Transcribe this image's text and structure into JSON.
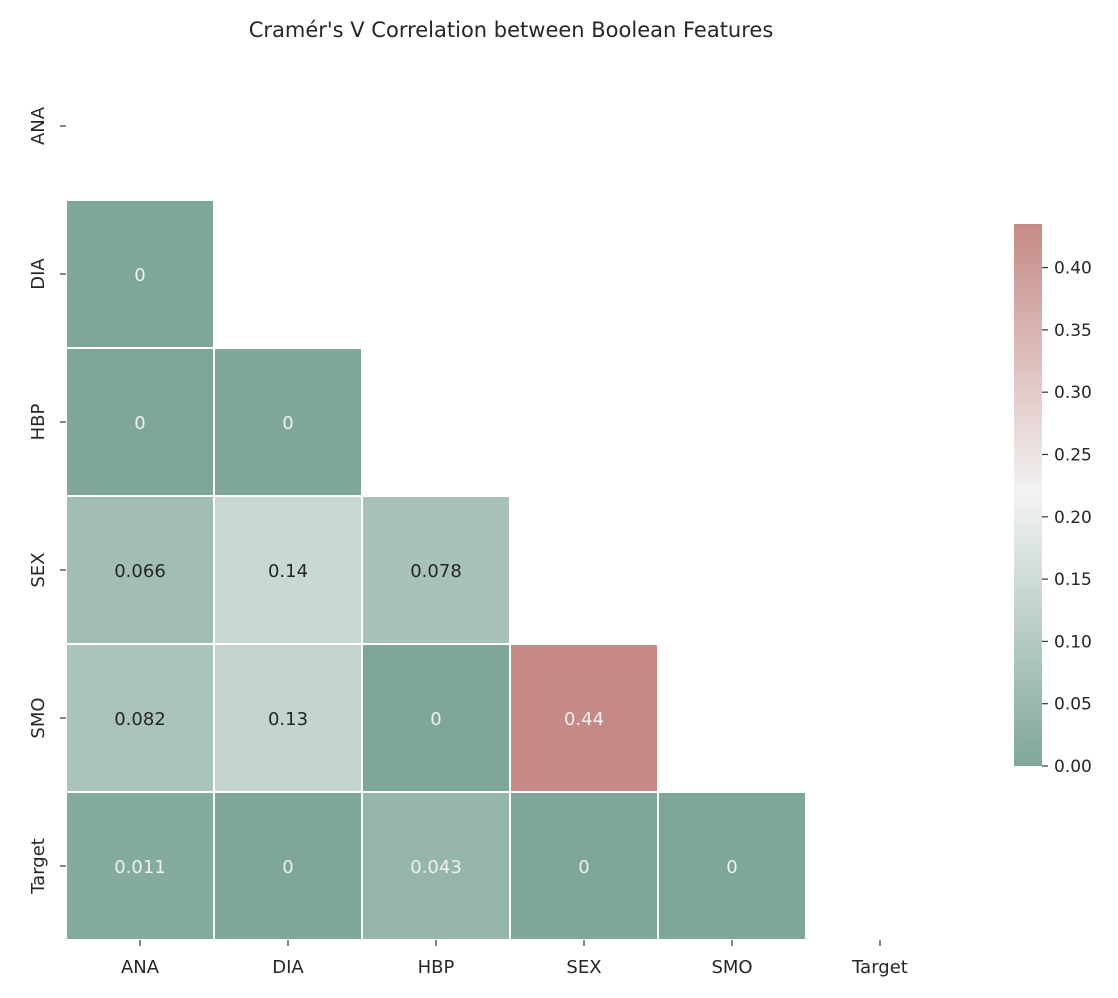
{
  "chart_data": {
    "type": "heatmap",
    "title": "Cramér's V Correlation between Boolean Features",
    "x_labels": [
      "ANA",
      "DIA",
      "HBP",
      "SEX",
      "SMO",
      "Target"
    ],
    "y_labels": [
      "ANA",
      "DIA",
      "HBP",
      "SEX",
      "SMO",
      "Target"
    ],
    "mask": "upper-triangle-including-diagonal",
    "cells": [
      {
        "row": "DIA",
        "col": "ANA",
        "value": 0,
        "label": "0"
      },
      {
        "row": "HBP",
        "col": "ANA",
        "value": 0,
        "label": "0"
      },
      {
        "row": "HBP",
        "col": "DIA",
        "value": 0,
        "label": "0"
      },
      {
        "row": "SEX",
        "col": "ANA",
        "value": 0.066,
        "label": "0.066"
      },
      {
        "row": "SEX",
        "col": "DIA",
        "value": 0.14,
        "label": "0.14"
      },
      {
        "row": "SEX",
        "col": "HBP",
        "value": 0.078,
        "label": "0.078"
      },
      {
        "row": "SMO",
        "col": "ANA",
        "value": 0.082,
        "label": "0.082"
      },
      {
        "row": "SMO",
        "col": "DIA",
        "value": 0.13,
        "label": "0.13"
      },
      {
        "row": "SMO",
        "col": "HBP",
        "value": 0,
        "label": "0"
      },
      {
        "row": "SMO",
        "col": "SEX",
        "value": 0.44,
        "label": "0.44"
      },
      {
        "row": "Target",
        "col": "ANA",
        "value": 0.011,
        "label": "0.011"
      },
      {
        "row": "Target",
        "col": "DIA",
        "value": 0,
        "label": "0"
      },
      {
        "row": "Target",
        "col": "HBP",
        "value": 0.043,
        "label": "0.043"
      },
      {
        "row": "Target",
        "col": "SEX",
        "value": 0,
        "label": "0"
      },
      {
        "row": "Target",
        "col": "SMO",
        "value": 0,
        "label": "0"
      }
    ],
    "colorbar": {
      "vmin": 0.0,
      "vmax": 0.435,
      "ticks": [
        0.0,
        0.05,
        0.1,
        0.15,
        0.2,
        0.25,
        0.3,
        0.35,
        0.4
      ],
      "tick_labels": [
        "0.00",
        "0.05",
        "0.10",
        "0.15",
        "0.20",
        "0.25",
        "0.30",
        "0.35",
        "0.40"
      ],
      "placement": "right"
    },
    "colors": {
      "low": "#7fa797",
      "mid": "#f3f3f3",
      "high": "#c68a86",
      "label_dark": "#262626",
      "label_light": "#f0f0f0",
      "grid": "#ffffff"
    }
  }
}
